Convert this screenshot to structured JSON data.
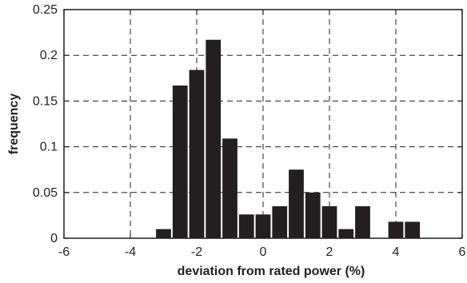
{
  "chart_data": {
    "type": "bar",
    "title": "",
    "xlabel": "deviation from rated power (%)",
    "ylabel": "frequency",
    "xlim": [
      -6,
      6
    ],
    "ylim": [
      0,
      0.25
    ],
    "xticks": [
      -6,
      -4,
      -2,
      0,
      2,
      4,
      6
    ],
    "yticks": [
      0,
      0.05,
      0.1,
      0.15,
      0.2,
      0.25
    ],
    "xtick_labels": [
      "-6",
      "-4",
      "-2",
      "0",
      "2",
      "4",
      "6"
    ],
    "ytick_labels": [
      "0",
      "0.05",
      "0.1",
      "0.15",
      "0.2",
      "0.25"
    ],
    "grid": true,
    "grid_style": "dashed",
    "bar_color": "#231f20",
    "bin_width": 0.5,
    "x": [
      -3.0,
      -2.5,
      -2.0,
      -1.5,
      -1.0,
      -0.5,
      0.0,
      0.5,
      1.0,
      1.5,
      2.0,
      2.5,
      3.0,
      3.5,
      4.0,
      4.5
    ],
    "values": [
      0.01,
      0.167,
      0.184,
      0.217,
      0.109,
      0.026,
      0.026,
      0.035,
      0.075,
      0.05,
      0.035,
      0.01,
      0.035,
      0.0,
      0.018,
      0.018
    ]
  }
}
